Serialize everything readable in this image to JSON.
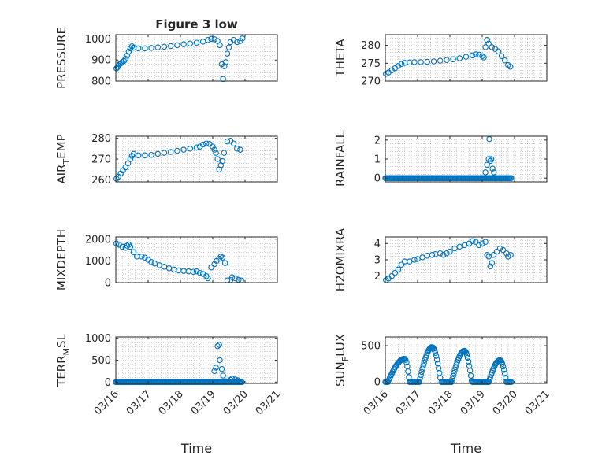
{
  "figure_title": "Figure 3 low",
  "colors": {
    "marker": "#0072BD",
    "axis": "#262626",
    "grid": "#b0b0b0"
  },
  "chart_data": [
    {
      "type": "scatter",
      "id": "pressure",
      "title": "Figure 3 low",
      "ylabel": {
        "main": "PRESSURE"
      },
      "ylim": [
        800,
        1020
      ],
      "yticks": [
        800,
        900,
        1000
      ],
      "yticklabels": [
        "800",
        "900",
        "1000"
      ],
      "xlim": [
        0,
        5
      ],
      "xticklabels": [],
      "points": [
        [
          0.02,
          860
        ],
        [
          0.05,
          865
        ],
        [
          0.08,
          872
        ],
        [
          0.12,
          880
        ],
        [
          0.16,
          885
        ],
        [
          0.2,
          890
        ],
        [
          0.25,
          895
        ],
        [
          0.3,
          905
        ],
        [
          0.35,
          920
        ],
        [
          0.4,
          940
        ],
        [
          0.45,
          955
        ],
        [
          0.5,
          965
        ],
        [
          0.55,
          958
        ],
        [
          0.7,
          955
        ],
        [
          0.9,
          955
        ],
        [
          1.1,
          957
        ],
        [
          1.3,
          960
        ],
        [
          1.5,
          963
        ],
        [
          1.7,
          966
        ],
        [
          1.9,
          970
        ],
        [
          2.1,
          975
        ],
        [
          2.3,
          978
        ],
        [
          2.5,
          982
        ],
        [
          2.7,
          987
        ],
        [
          2.85,
          995
        ],
        [
          2.95,
          1000
        ],
        [
          3.05,
          998
        ],
        [
          3.15,
          990
        ],
        [
          3.22,
          970
        ],
        [
          3.28,
          880
        ],
        [
          3.32,
          810
        ],
        [
          3.36,
          870
        ],
        [
          3.4,
          890
        ],
        [
          3.45,
          930
        ],
        [
          3.5,
          960
        ],
        [
          3.55,
          985
        ],
        [
          3.65,
          995
        ],
        [
          3.75,
          985
        ],
        [
          3.85,
          990
        ],
        [
          3.92,
          1002
        ]
      ]
    },
    {
      "type": "scatter",
      "id": "theta",
      "ylabel": {
        "main": "THETA"
      },
      "ylim": [
        270,
        283
      ],
      "yticks": [
        270,
        275,
        280
      ],
      "yticklabels": [
        "270",
        "275",
        "280"
      ],
      "xlim": [
        0,
        5
      ],
      "xticklabels": [],
      "points": [
        [
          0.02,
          272
        ],
        [
          0.1,
          272.4
        ],
        [
          0.2,
          273
        ],
        [
          0.3,
          273.6
        ],
        [
          0.4,
          274.2
        ],
        [
          0.5,
          274.8
        ],
        [
          0.6,
          275.1
        ],
        [
          0.75,
          275.2
        ],
        [
          0.9,
          275.3
        ],
        [
          1.1,
          275.3
        ],
        [
          1.3,
          275.4
        ],
        [
          1.5,
          275.5
        ],
        [
          1.7,
          275.7
        ],
        [
          1.9,
          275.9
        ],
        [
          2.1,
          276.1
        ],
        [
          2.3,
          276.4
        ],
        [
          2.5,
          276.8
        ],
        [
          2.7,
          277.2
        ],
        [
          2.8,
          277.5
        ],
        [
          2.9,
          277.4
        ],
        [
          3.0,
          277
        ],
        [
          3.05,
          276.6
        ],
        [
          3.1,
          279.5
        ],
        [
          3.15,
          281.5
        ],
        [
          3.2,
          280.5
        ],
        [
          3.3,
          279.5
        ],
        [
          3.4,
          279
        ],
        [
          3.5,
          278.3
        ],
        [
          3.6,
          277
        ],
        [
          3.7,
          275.8
        ],
        [
          3.8,
          274.5
        ],
        [
          3.87,
          274
        ]
      ]
    },
    {
      "type": "scatter",
      "id": "air_temp",
      "ylabel": {
        "main": "AIR",
        "sub": "T",
        "rest": "EMP"
      },
      "ylim": [
        259,
        281
      ],
      "yticks": [
        260,
        270,
        280
      ],
      "yticklabels": [
        "260",
        "270",
        "280"
      ],
      "xlim": [
        0,
        5
      ],
      "xticklabels": [],
      "points": [
        [
          0.02,
          260.5
        ],
        [
          0.08,
          261.5
        ],
        [
          0.15,
          263
        ],
        [
          0.22,
          264.5
        ],
        [
          0.3,
          266
        ],
        [
          0.38,
          268
        ],
        [
          0.45,
          270
        ],
        [
          0.5,
          271.5
        ],
        [
          0.55,
          272.5
        ],
        [
          0.7,
          271.8
        ],
        [
          0.9,
          271.8
        ],
        [
          1.1,
          272
        ],
        [
          1.3,
          272.5
        ],
        [
          1.5,
          273
        ],
        [
          1.7,
          273.4
        ],
        [
          1.9,
          274
        ],
        [
          2.1,
          274.5
        ],
        [
          2.3,
          275
        ],
        [
          2.5,
          275.6
        ],
        [
          2.6,
          276
        ],
        [
          2.7,
          277
        ],
        [
          2.8,
          277.5
        ],
        [
          2.9,
          277.3
        ],
        [
          3.0,
          276
        ],
        [
          3.05,
          274.5
        ],
        [
          3.1,
          273
        ],
        [
          3.15,
          270
        ],
        [
          3.2,
          265
        ],
        [
          3.25,
          267
        ],
        [
          3.3,
          269
        ],
        [
          3.35,
          273
        ],
        [
          3.45,
          278.5
        ],
        [
          3.55,
          278.8
        ],
        [
          3.65,
          277.5
        ],
        [
          3.75,
          275
        ],
        [
          3.85,
          274.5
        ]
      ]
    },
    {
      "type": "scatter",
      "id": "rainfall",
      "ylabel": {
        "main": "RAINFALL"
      },
      "ylim": [
        -0.2,
        2.2
      ],
      "yticks": [
        0,
        1,
        2
      ],
      "yticklabels": [
        "0",
        "1",
        "2"
      ],
      "xlim": [
        0,
        5
      ],
      "xticklabels": [],
      "rainfall_zero_range": [
        0,
        3.92
      ],
      "points": [
        [
          3.1,
          0.3
        ],
        [
          3.15,
          0.7
        ],
        [
          3.2,
          1.0
        ],
        [
          3.22,
          2.05
        ],
        [
          3.25,
          0.9
        ],
        [
          3.28,
          1.0
        ],
        [
          3.32,
          0.5
        ],
        [
          3.36,
          0.3
        ]
      ]
    },
    {
      "type": "scatter",
      "id": "mixdepth",
      "ylabel": {
        "main": "MIXDEPTH"
      },
      "ylim": [
        0,
        2100
      ],
      "yticks": [
        0,
        1000,
        2000
      ],
      "yticklabels": [
        "0",
        "1000",
        "2000"
      ],
      "xlim": [
        0,
        5
      ],
      "xticklabels": [],
      "points": [
        [
          0.02,
          1800
        ],
        [
          0.1,
          1750
        ],
        [
          0.2,
          1650
        ],
        [
          0.3,
          1600
        ],
        [
          0.35,
          1700
        ],
        [
          0.4,
          1750
        ],
        [
          0.45,
          1650
        ],
        [
          0.55,
          1400
        ],
        [
          0.65,
          1200
        ],
        [
          0.8,
          1200
        ],
        [
          0.9,
          1150
        ],
        [
          1.0,
          1050
        ],
        [
          1.1,
          950
        ],
        [
          1.2,
          880
        ],
        [
          1.35,
          800
        ],
        [
          1.5,
          730
        ],
        [
          1.65,
          660
        ],
        [
          1.8,
          600
        ],
        [
          1.95,
          560
        ],
        [
          2.1,
          540
        ],
        [
          2.25,
          520
        ],
        [
          2.4,
          500
        ],
        [
          2.5,
          520
        ],
        [
          2.6,
          450
        ],
        [
          2.7,
          400
        ],
        [
          2.8,
          300
        ],
        [
          2.85,
          200
        ],
        [
          2.95,
          700
        ],
        [
          3.05,
          850
        ],
        [
          3.12,
          1000
        ],
        [
          3.2,
          1100
        ],
        [
          3.25,
          1200
        ],
        [
          3.3,
          1150
        ],
        [
          3.38,
          900
        ],
        [
          3.45,
          100
        ],
        [
          3.55,
          120
        ],
        [
          3.6,
          250
        ],
        [
          3.7,
          200
        ],
        [
          3.8,
          130
        ],
        [
          3.88,
          100
        ]
      ]
    },
    {
      "type": "scatter",
      "id": "h2omixra",
      "ylabel": {
        "main": "H2OMIXRA"
      },
      "ylim": [
        1.6,
        4.4
      ],
      "yticks": [
        2,
        3,
        4
      ],
      "yticklabels": [
        "2",
        "3",
        "4"
      ],
      "xlim": [
        0,
        5
      ],
      "xticklabels": [],
      "points": [
        [
          0.02,
          1.75
        ],
        [
          0.1,
          1.85
        ],
        [
          0.2,
          2.0
        ],
        [
          0.3,
          2.2
        ],
        [
          0.4,
          2.4
        ],
        [
          0.5,
          2.7
        ],
        [
          0.6,
          2.9
        ],
        [
          0.75,
          2.9
        ],
        [
          0.9,
          3.0
        ],
        [
          1.0,
          3.05
        ],
        [
          1.15,
          3.15
        ],
        [
          1.3,
          3.25
        ],
        [
          1.45,
          3.3
        ],
        [
          1.55,
          3.35
        ],
        [
          1.7,
          3.4
        ],
        [
          1.8,
          3.3
        ],
        [
          1.9,
          3.4
        ],
        [
          2.0,
          3.5
        ],
        [
          2.15,
          3.7
        ],
        [
          2.3,
          3.8
        ],
        [
          2.45,
          3.9
        ],
        [
          2.6,
          4.0
        ],
        [
          2.7,
          4.15
        ],
        [
          2.8,
          4.1
        ],
        [
          2.9,
          3.9
        ],
        [
          3.0,
          4.0
        ],
        [
          3.1,
          4.1
        ],
        [
          3.15,
          3.3
        ],
        [
          3.2,
          3.2
        ],
        [
          3.25,
          2.6
        ],
        [
          3.3,
          2.8
        ],
        [
          3.35,
          3.3
        ],
        [
          3.45,
          3.5
        ],
        [
          3.55,
          3.7
        ],
        [
          3.65,
          3.6
        ],
        [
          3.75,
          3.4
        ],
        [
          3.8,
          3.2
        ],
        [
          3.88,
          3.3
        ]
      ]
    },
    {
      "type": "scatter",
      "id": "terr_msl",
      "ylabel": {
        "main": "TERR",
        "sub": "M",
        "rest": "SL"
      },
      "ylim": [
        -30,
        1030
      ],
      "yticks": [
        0,
        500,
        1000
      ],
      "yticklabels": [
        "0",
        "500",
        "1000"
      ],
      "xlim": [
        0,
        5
      ],
      "xticks": [
        0,
        1,
        2,
        3,
        4,
        5
      ],
      "xticklabels": [
        "03/16",
        "03/17",
        "03/18",
        "03/19",
        "03/20",
        "03/21"
      ],
      "xlabel": "Time",
      "terr_zero_range": [
        0,
        3.92
      ],
      "points": [
        [
          3.05,
          250
        ],
        [
          3.1,
          330
        ],
        [
          3.15,
          820
        ],
        [
          3.2,
          850
        ],
        [
          3.22,
          500
        ],
        [
          3.28,
          300
        ],
        [
          3.32,
          150
        ],
        [
          3.4,
          20
        ],
        [
          3.55,
          50
        ],
        [
          3.6,
          80
        ],
        [
          3.7,
          60
        ],
        [
          3.78,
          40
        ]
      ]
    },
    {
      "type": "scatter",
      "id": "sunflux",
      "ylabel": {
        "main": "SUN",
        "sub": "F",
        "rest": "LUX"
      },
      "ylim": [
        -20,
        620
      ],
      "yticks": [
        0,
        500
      ],
      "yticklabels": [
        "0",
        "500"
      ],
      "xlim": [
        0,
        5
      ],
      "xticks": [
        0,
        1,
        2,
        3,
        4,
        5
      ],
      "xticklabels": [
        "03/16",
        "03/17",
        "03/18",
        "03/19",
        "03/20",
        "03/21"
      ],
      "xlabel": "Time",
      "day_cycles": [
        {
          "start": 0.08,
          "peak_x": 0.6,
          "peak": 320,
          "end": 0.75
        },
        {
          "start": 1.05,
          "peak_x": 1.45,
          "peak": 480,
          "end": 1.72
        },
        {
          "start": 2.05,
          "peak_x": 2.45,
          "peak": 430,
          "end": 2.68
        },
        {
          "start": 3.2,
          "peak_x": 3.55,
          "peak": 300,
          "end": 3.75
        }
      ],
      "sun_zero_range": [
        0,
        3.92
      ]
    }
  ]
}
